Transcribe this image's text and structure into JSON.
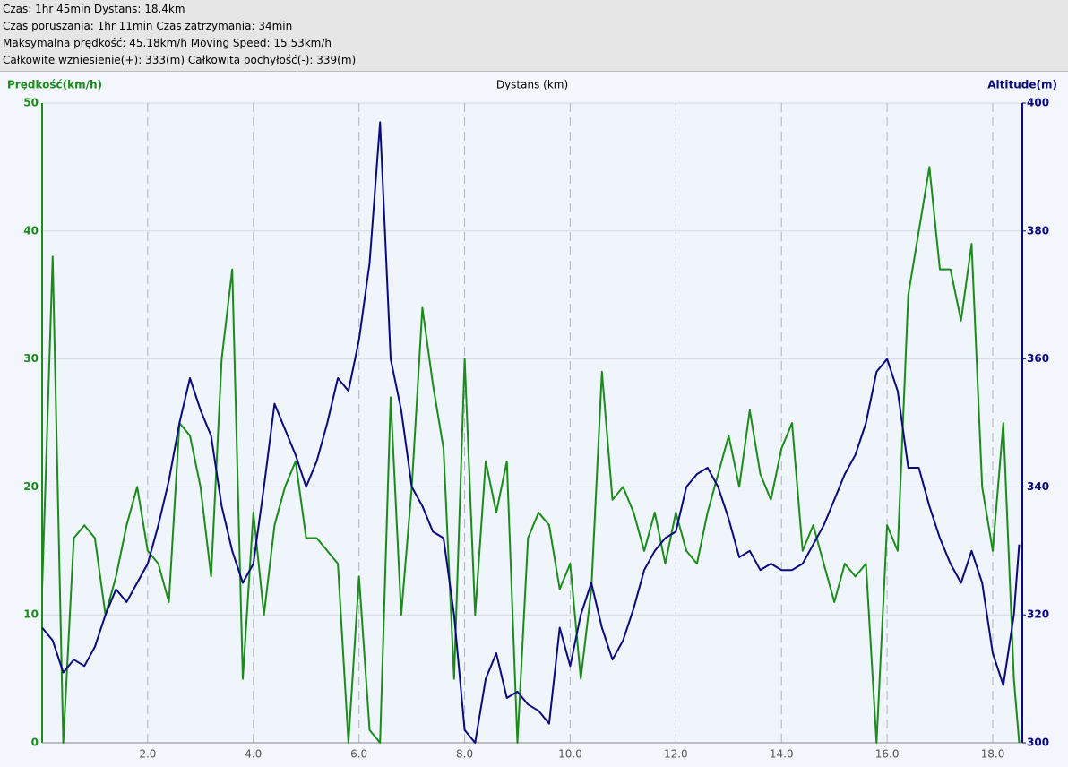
{
  "header": {
    "lines": [
      "Czas: 1hr 45min  Dystans: 18.4km",
      "Czas poruszania: 1hr 11min  Czas zatrzymania: 34min",
      "Maksymalna prędkość: 45.18km/h  Moving Speed: 15.53km/h",
      "Całkowite wzniesienie(+): 333(m)  Całkowita pochyłość(-): 339(m)"
    ]
  },
  "chart_data": {
    "type": "line",
    "ylabel": "Prędkość(km/h)",
    "xlabel": "Dystans (km)",
    "y2label": "Altitude(m)",
    "x": [
      0,
      0.2,
      0.4,
      0.6,
      0.8,
      1.0,
      1.2,
      1.4,
      1.6,
      1.8,
      2.0,
      2.2,
      2.4,
      2.6,
      2.8,
      3.0,
      3.2,
      3.4,
      3.6,
      3.8,
      4.0,
      4.2,
      4.4,
      4.6,
      4.8,
      5.0,
      5.2,
      5.4,
      5.6,
      5.8,
      6.0,
      6.2,
      6.4,
      6.6,
      6.8,
      7.0,
      7.2,
      7.4,
      7.6,
      7.8,
      8.0,
      8.2,
      8.4,
      8.6,
      8.8,
      9.0,
      9.2,
      9.4,
      9.6,
      9.8,
      10.0,
      10.2,
      10.4,
      10.6,
      10.8,
      11.0,
      11.2,
      11.4,
      11.6,
      11.8,
      12.0,
      12.2,
      12.4,
      12.6,
      12.8,
      13.0,
      13.2,
      13.4,
      13.6,
      13.8,
      14.0,
      14.2,
      14.4,
      14.6,
      14.8,
      15.0,
      15.2,
      15.4,
      15.6,
      15.8,
      16.0,
      16.2,
      16.4,
      16.6,
      16.8,
      17.0,
      17.2,
      17.4,
      17.6,
      17.8,
      18.0,
      18.2,
      18.4,
      18.5
    ],
    "series": [
      {
        "name": "Prędkość",
        "color": "#1a8c1a",
        "values": [
          12,
          38,
          0,
          16,
          17,
          16,
          10,
          13,
          17,
          20,
          15,
          14,
          11,
          25,
          24,
          20,
          13,
          30,
          37,
          5,
          18,
          10,
          17,
          20,
          22,
          16,
          16,
          15,
          14,
          0,
          13,
          1,
          0,
          27,
          10,
          20,
          34,
          28,
          23,
          5,
          30,
          10,
          22,
          18,
          22,
          0,
          16,
          18,
          17,
          12,
          14,
          5,
          12,
          29,
          19,
          20,
          18,
          15,
          18,
          14,
          18,
          15,
          14,
          18,
          21,
          24,
          20,
          26,
          21,
          19,
          23,
          25,
          15,
          17,
          14,
          11,
          14,
          13,
          14,
          0,
          17,
          15,
          35,
          40,
          45,
          37,
          37,
          33,
          39,
          20,
          15,
          25,
          5,
          0
        ]
      },
      {
        "name": "Altitude",
        "color": "#0a0a80",
        "axis": "y2",
        "values": [
          318,
          316,
          311,
          313,
          312,
          315,
          320,
          324,
          322,
          325,
          328,
          334,
          341,
          350,
          357,
          352,
          348,
          337,
          330,
          325,
          328,
          340,
          353,
          349,
          345,
          340,
          344,
          350,
          357,
          355,
          363,
          375,
          397,
          360,
          352,
          340,
          337,
          333,
          332,
          320,
          302,
          300,
          310,
          314,
          307,
          308,
          306,
          305,
          303,
          318,
          312,
          320,
          325,
          318,
          313,
          316,
          321,
          327,
          330,
          332,
          333,
          340,
          342,
          343,
          340,
          335,
          329,
          330,
          327,
          328,
          327,
          327,
          328,
          331,
          334,
          338,
          342,
          345,
          350,
          358,
          360,
          355,
          343,
          343,
          337,
          332,
          328,
          325,
          330,
          325,
          314,
          309,
          320,
          331
        ]
      }
    ],
    "xlim": [
      0,
      18.56
    ],
    "xticks": [
      {
        "value": 2,
        "label": "2.0"
      },
      {
        "value": 4,
        "label": "4.0"
      },
      {
        "value": 6,
        "label": "6.0"
      },
      {
        "value": 8,
        "label": "8.0"
      },
      {
        "value": 10,
        "label": "10.0"
      },
      {
        "value": 12,
        "label": "12.0"
      },
      {
        "value": 14,
        "label": "14.0"
      },
      {
        "value": 16,
        "label": "16.0"
      },
      {
        "value": 18,
        "label": "18.0"
      }
    ],
    "ylim": [
      0,
      50
    ],
    "yticks": [
      0,
      10,
      20,
      30,
      40,
      50
    ],
    "y2lim": [
      300,
      400
    ],
    "y2ticks": [
      300,
      320,
      340,
      360,
      380,
      400
    ],
    "grid": true
  }
}
